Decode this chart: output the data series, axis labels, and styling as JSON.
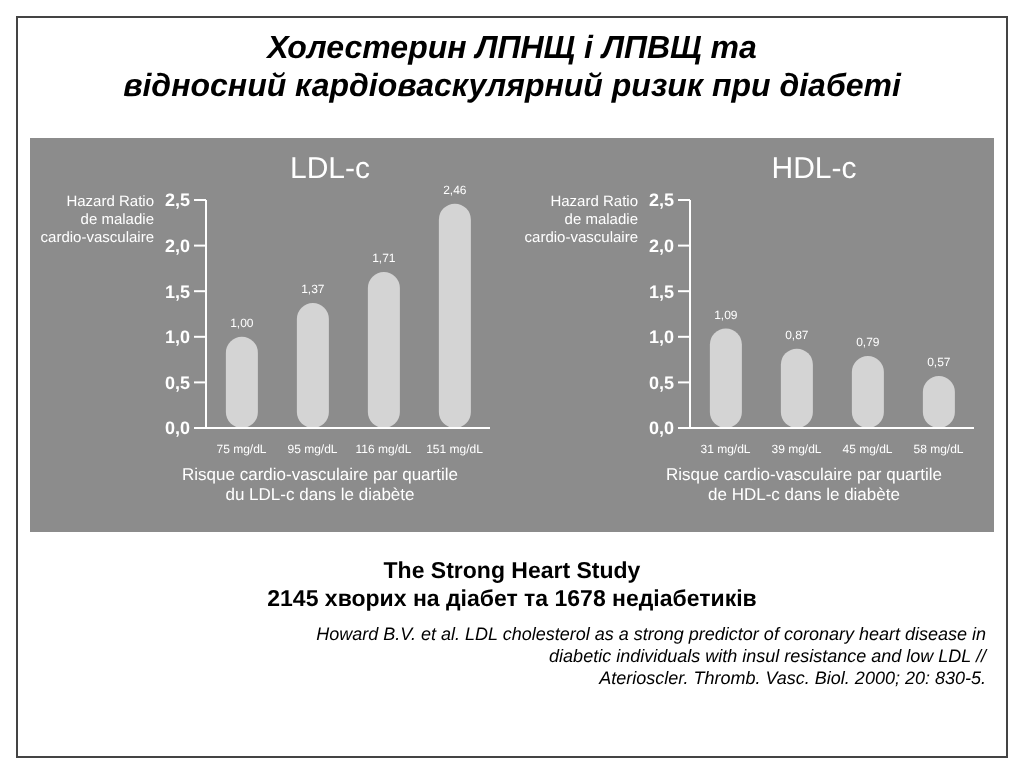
{
  "chart_data": [
    {
      "type": "bar",
      "title": "Холестерин ЛПНЩ і ЛПВЩ та\nвідносний кардіоваскулярний ризик при діабеті",
      "subtitle": "LDL-c",
      "ylabel": "Hazard Ratio\nde maladie\ncardio-vasculaire",
      "xlabel": "Risque cardio-vasculaire par quartile\ndu LDL-c dans le diabète",
      "categories": [
        "75 mg/dL",
        "95 mg/dL",
        "116 mg/dL",
        "151 mg/dL"
      ],
      "values": [
        1.0,
        1.37,
        1.71,
        2.46
      ],
      "value_labels": [
        "1,00",
        "1,37",
        "1,71",
        "2,46"
      ],
      "color": "#d4d4d4",
      "ylim": [
        0,
        2.5
      ],
      "yticks": [
        {
          "value": 0,
          "label": "0,0"
        },
        {
          "value": 0.5,
          "label": "0,5"
        },
        {
          "value": 1,
          "label": "1,0"
        },
        {
          "value": 1.5,
          "label": "1,5"
        },
        {
          "value": 2,
          "label": "2,0"
        },
        {
          "value": 2.5,
          "label": "2,5"
        }
      ],
      "grid": false
    },
    {
      "type": "bar",
      "subtitle": "HDL-c",
      "ylabel": "Hazard Ratio\nde maladie\ncardio-vasculaire",
      "xlabel": "Risque cardio-vasculaire par quartile\nde HDL-c dans le diabète",
      "categories": [
        "31 mg/dL",
        "39 mg/dL",
        "45 mg/dL",
        "58 mg/dL"
      ],
      "values": [
        1.09,
        0.87,
        0.79,
        0.57
      ],
      "value_labels": [
        "1,09",
        "0,87",
        "0,79",
        "0,57"
      ],
      "color": "#d4d4d4",
      "ylim": [
        0,
        2.5
      ],
      "yticks": [
        {
          "value": 0,
          "label": "0,0"
        },
        {
          "value": 0.5,
          "label": "0,5"
        },
        {
          "value": 1,
          "label": "1,0"
        },
        {
          "value": 1.5,
          "label": "1,5"
        },
        {
          "value": 2,
          "label": "2,0"
        },
        {
          "value": 2.5,
          "label": "2,5"
        }
      ],
      "grid": false,
      "annotations": [
        "The Strong Heart Study\n2145 хворих на діабет та 1678 недіабетиків",
        "Howard B.V. et al. LDL cholesterol as a strong predictor of coronary heart disease in\ndiabetic individuals with insul resistance and low LDL //\nAterioscler. Thromb. Vasc. Biol. 2000; 20: 830-5."
      ]
    }
  ]
}
